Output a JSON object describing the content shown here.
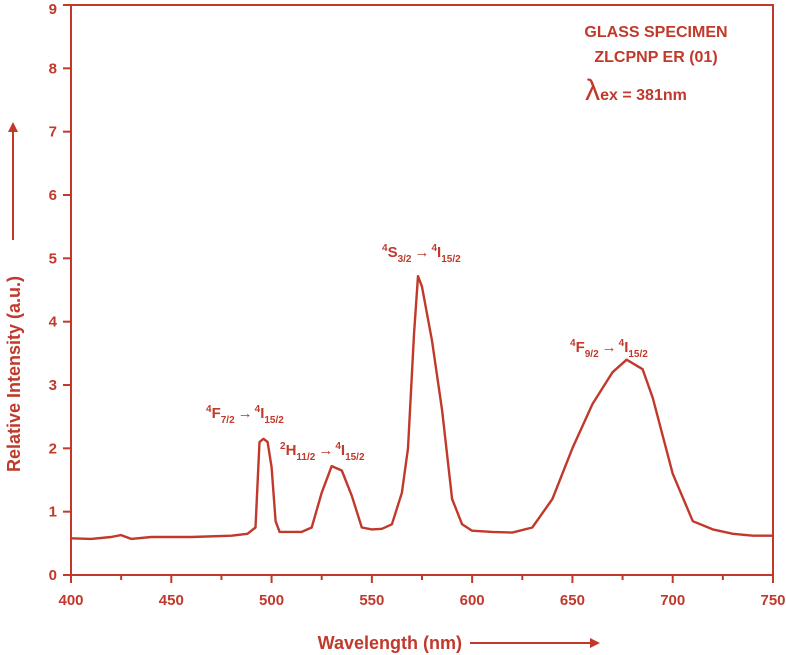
{
  "chart_data": {
    "type": "line",
    "xlabel": "Wavelength (nm)",
    "ylabel": "Relative Intensity (a.u.)",
    "xlim": [
      400,
      750
    ],
    "ylim": [
      0,
      9
    ],
    "xticks": [
      "400",
      "450",
      "500",
      "550",
      "600",
      "650",
      "700",
      "750"
    ],
    "yticks": [
      "0",
      "1",
      "2",
      "3",
      "4",
      "5",
      "6",
      "7",
      "8",
      "9"
    ],
    "grid": false,
    "line_color": "#c0392b",
    "info_box": {
      "line1": "GLASS SPECIMEN",
      "line2": "ZLCPNP ER (01)",
      "lambda_symbol": "λ",
      "lambda_sub": "ex",
      "lambda_value": " = 381nm"
    },
    "annotations": [
      {
        "wavelength": 497,
        "level": 2.15,
        "sup1": "4",
        "term1": "F",
        "sub1": "7/2",
        "arrow": "→",
        "sup2": "4",
        "term2": "I",
        "sub2": "15/2"
      },
      {
        "wavelength": 530,
        "level": 1.75,
        "sup1": "2",
        "term1": "H",
        "sub1": "11/2",
        "arrow": "→",
        "sup2": "4",
        "term2": "I",
        "sub2": "15/2"
      },
      {
        "wavelength": 573,
        "level": 4.75,
        "sup1": "4",
        "term1": "S",
        "sub1": "3/2",
        "arrow": "→",
        "sup2": "4",
        "term2": "I",
        "sub2": "15/2"
      },
      {
        "wavelength": 677,
        "level": 3.4,
        "sup1": "4",
        "term1": "F",
        "sub1": "9/2",
        "arrow": "→",
        "sup2": "4",
        "term2": "I",
        "sub2": "15/2"
      }
    ],
    "series": [
      {
        "x": [
          400,
          410,
          420,
          425,
          430,
          440,
          460,
          480,
          488,
          492,
          494,
          496,
          498,
          500,
          502,
          504,
          508,
          515,
          520,
          525,
          530,
          535,
          540,
          545,
          550,
          555,
          560,
          565,
          568,
          571,
          573,
          575,
          580,
          585,
          590,
          595,
          600,
          610,
          620,
          630,
          640,
          650,
          660,
          670,
          677,
          685,
          690,
          700,
          710,
          720,
          730,
          740,
          750
        ],
        "y": [
          0.58,
          0.57,
          0.6,
          0.63,
          0.57,
          0.6,
          0.6,
          0.62,
          0.65,
          0.75,
          2.1,
          2.15,
          2.1,
          1.7,
          0.85,
          0.68,
          0.68,
          0.68,
          0.75,
          1.3,
          1.72,
          1.65,
          1.25,
          0.75,
          0.72,
          0.73,
          0.8,
          1.3,
          2.0,
          3.8,
          4.72,
          4.55,
          3.7,
          2.6,
          1.2,
          0.8,
          0.7,
          0.68,
          0.67,
          0.75,
          1.2,
          2.0,
          2.7,
          3.2,
          3.4,
          3.25,
          2.8,
          1.6,
          0.85,
          0.72,
          0.65,
          0.62,
          0.62
        ]
      }
    ]
  }
}
